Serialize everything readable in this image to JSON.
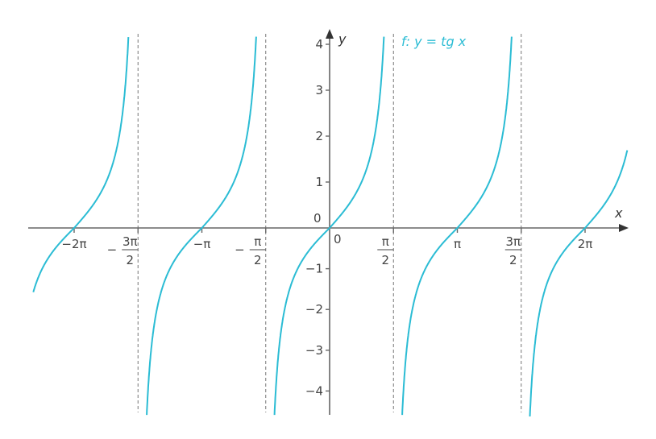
{
  "chart_data": {
    "type": "line",
    "title": "",
    "function_label": {
      "f": "f",
      "rest": ": y = tg ",
      "x": "x"
    },
    "xlabel": "x",
    "ylabel": "y",
    "xlim_pi": [
      -2.32,
      2.33
    ],
    "ylim": [
      -4.7,
      4.2
    ],
    "origin_label": "0",
    "y_origin_label": "0",
    "y_ticks": [
      4,
      3,
      2,
      1,
      -1,
      -2,
      -3,
      -4
    ],
    "y_tick_labels": [
      "4",
      "3",
      "2",
      "1",
      "−1",
      "−2",
      "−3",
      "−4"
    ],
    "x_ticks": [
      {
        "value_pi": -2,
        "label": "−2π"
      },
      {
        "value_pi": -1.5,
        "sign": "−",
        "num": "3π",
        "den": "2"
      },
      {
        "value_pi": -1,
        "label": "−π"
      },
      {
        "value_pi": -0.5,
        "sign": "−",
        "num": "π",
        "den": "2"
      },
      {
        "value_pi": 0.5,
        "num": "π",
        "den": "2"
      },
      {
        "value_pi": 1,
        "label": "π"
      },
      {
        "value_pi": 1.5,
        "num": "3π",
        "den": "2"
      },
      {
        "value_pi": 2,
        "label": "2π"
      }
    ],
    "asymptotes_pi": [
      -1.5,
      -0.5,
      0.5,
      1.5
    ],
    "series": [
      {
        "expression": "tan(x)",
        "color": "#2bbcd4"
      }
    ],
    "grid": false
  }
}
